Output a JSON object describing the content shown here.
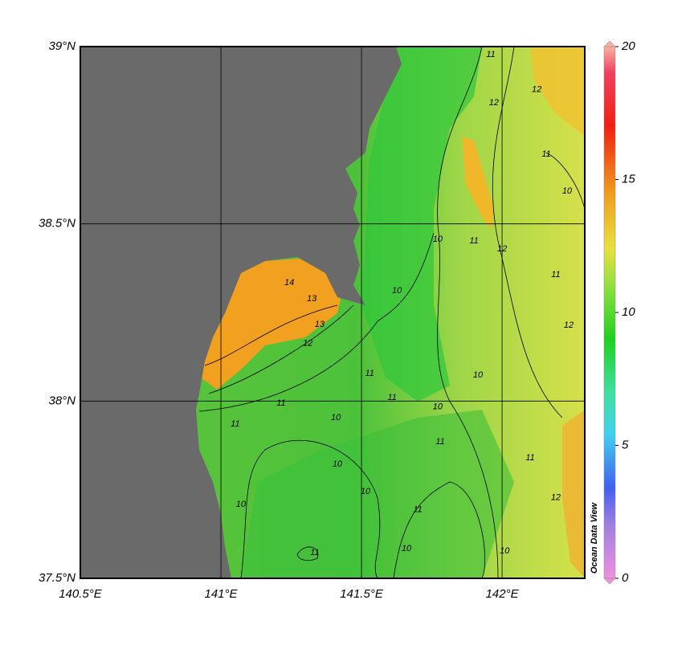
{
  "chart_data": {
    "type": "map",
    "xlim": [
      140.5,
      142.294
    ],
    "ylim": [
      37.5,
      39
    ],
    "xticks": [
      {
        "value": 140.5,
        "label": "140.5°E"
      },
      {
        "value": 141,
        "label": "141°E"
      },
      {
        "value": 141.5,
        "label": "141.5°E"
      },
      {
        "value": 142,
        "label": "142°E"
      }
    ],
    "yticks": [
      {
        "value": 37.5,
        "label": "37.5°N"
      },
      {
        "value": 38,
        "label": "38°N"
      },
      {
        "value": 38.5,
        "label": "38.5°N"
      },
      {
        "value": 39,
        "label": "39°N"
      }
    ],
    "grid": true,
    "colorbar": {
      "lim": [
        0,
        20
      ],
      "ticks": [
        0,
        5,
        10,
        15,
        20
      ]
    },
    "credit": "Ocean Data View",
    "contour_labels": [
      {
        "lon": 141.243,
        "lat": 38.334,
        "value": 14
      },
      {
        "lon": 141.323,
        "lat": 38.288,
        "value": 13
      },
      {
        "lon": 141.351,
        "lat": 38.216,
        "value": 13
      },
      {
        "lon": 141.309,
        "lat": 38.162,
        "value": 12
      },
      {
        "lon": 141.529,
        "lat": 38.078,
        "value": 11
      },
      {
        "lon": 141.214,
        "lat": 37.994,
        "value": 11
      },
      {
        "lon": 141.609,
        "lat": 38.01,
        "value": 11
      },
      {
        "lon": 141.771,
        "lat": 37.983,
        "value": 10
      },
      {
        "lon": 141.626,
        "lat": 38.311,
        "value": 10
      },
      {
        "lon": 141.771,
        "lat": 38.456,
        "value": 10
      },
      {
        "lon": 141.9,
        "lat": 38.452,
        "value": 11
      },
      {
        "lon": 142.0,
        "lat": 38.429,
        "value": 12
      },
      {
        "lon": 141.971,
        "lat": 38.841,
        "value": 12
      },
      {
        "lon": 142.123,
        "lat": 38.878,
        "value": 12
      },
      {
        "lon": 141.96,
        "lat": 38.977,
        "value": 11
      },
      {
        "lon": 142.157,
        "lat": 38.696,
        "value": 11
      },
      {
        "lon": 142.231,
        "lat": 38.592,
        "value": 10
      },
      {
        "lon": 142.191,
        "lat": 38.356,
        "value": 11
      },
      {
        "lon": 142.237,
        "lat": 38.214,
        "value": 12
      },
      {
        "lon": 141.914,
        "lat": 38.073,
        "value": 10
      },
      {
        "lon": 141.051,
        "lat": 37.935,
        "value": 11
      },
      {
        "lon": 141.409,
        "lat": 37.953,
        "value": 10
      },
      {
        "lon": 141.414,
        "lat": 37.822,
        "value": 10
      },
      {
        "lon": 141.514,
        "lat": 37.745,
        "value": 10
      },
      {
        "lon": 141.071,
        "lat": 37.708,
        "value": 10
      },
      {
        "lon": 141.7,
        "lat": 37.693,
        "value": 11
      },
      {
        "lon": 141.66,
        "lat": 37.584,
        "value": 10
      },
      {
        "lon": 141.334,
        "lat": 37.572,
        "value": 11
      },
      {
        "lon": 141.78,
        "lat": 37.885,
        "value": 11
      },
      {
        "lon": 142.009,
        "lat": 37.577,
        "value": 10
      },
      {
        "lon": 142.1,
        "lat": 37.84,
        "value": 11
      },
      {
        "lon": 142.191,
        "lat": 37.727,
        "value": 12
      }
    ]
  }
}
